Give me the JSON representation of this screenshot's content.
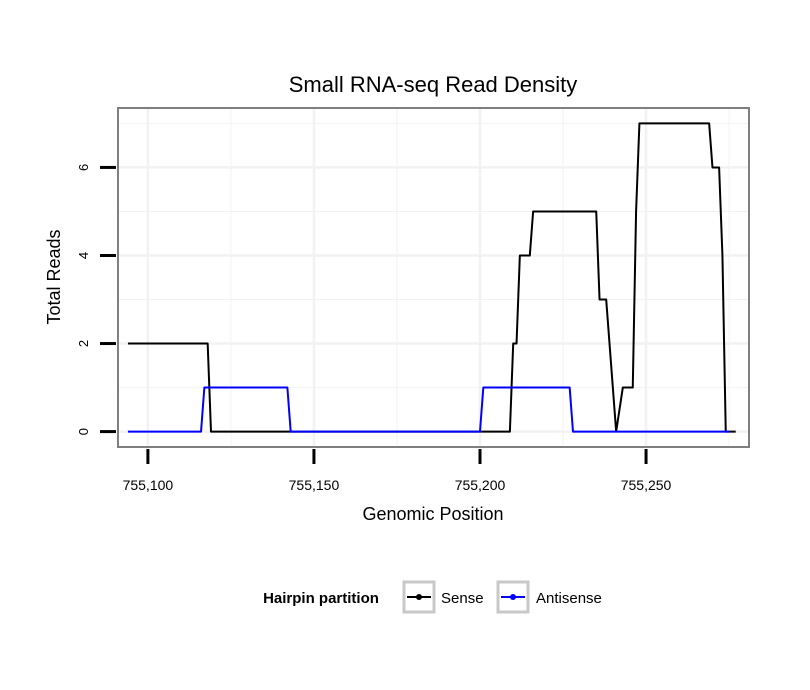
{
  "chart_data": {
    "type": "line",
    "title": "Small RNA-seq Read Density",
    "xlabel": "Genomic Position",
    "ylabel": "Total Reads",
    "xlim": [
      755091,
      755281
    ],
    "ylim": [
      -0.35,
      7.35
    ],
    "x_ticks": [
      755100,
      755150,
      755200,
      755250
    ],
    "x_tick_labels": [
      "755,100",
      "755,150",
      "755,200",
      "755,250"
    ],
    "y_ticks": [
      0,
      2,
      4,
      6
    ],
    "y_tick_labels": [
      "0",
      "2",
      "4",
      "6"
    ],
    "grid": true,
    "legend": {
      "title": "Hairpin partition",
      "position": "bottom",
      "entries": [
        "Sense",
        "Antisense"
      ]
    },
    "series": [
      {
        "name": "Sense",
        "color": "#000000",
        "points": [
          [
            755094,
            2
          ],
          [
            755118,
            2
          ],
          [
            755119,
            0
          ],
          [
            755209,
            0
          ],
          [
            755210,
            2
          ],
          [
            755211,
            2
          ],
          [
            755212,
            4
          ],
          [
            755215,
            4
          ],
          [
            755216,
            5
          ],
          [
            755235,
            5
          ],
          [
            755236,
            3
          ],
          [
            755238,
            3
          ],
          [
            755241,
            0
          ],
          [
            755243,
            1
          ],
          [
            755246,
            1
          ],
          [
            755247,
            5
          ],
          [
            755248,
            7
          ],
          [
            755269,
            7
          ],
          [
            755270,
            6
          ],
          [
            755272,
            6
          ],
          [
            755273,
            4
          ],
          [
            755274,
            0
          ],
          [
            755277,
            0
          ]
        ]
      },
      {
        "name": "Antisense",
        "color": "#0000ff",
        "points": [
          [
            755094,
            0
          ],
          [
            755116,
            0
          ],
          [
            755117,
            1
          ],
          [
            755142,
            1
          ],
          [
            755143,
            0
          ],
          [
            755200,
            0
          ],
          [
            755201,
            1
          ],
          [
            755227,
            1
          ],
          [
            755228,
            0
          ],
          [
            755275,
            0
          ]
        ]
      }
    ]
  }
}
